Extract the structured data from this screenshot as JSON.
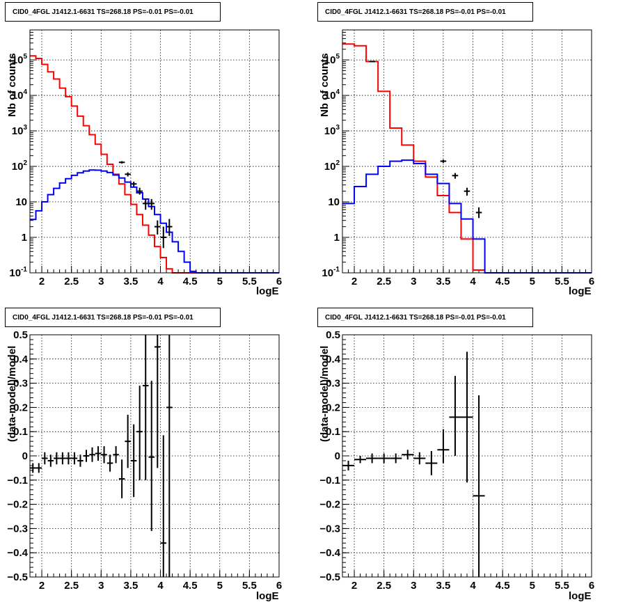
{
  "chart_data": [
    {
      "type": "line",
      "title": "CID0_4FGL J1412.1-6631 TS=268.18 PS=-0.01 PS=-0.01",
      "xlabel": "logE",
      "ylabel": "Nb of counts",
      "xlim": [
        1.8,
        6.0
      ],
      "ylim": [
        0.1,
        700000
      ],
      "yscale": "log",
      "grid": true,
      "xticks": [
        "2",
        "2.5",
        "3",
        "3.5",
        "4",
        "4.5",
        "5",
        "5.5",
        "6"
      ],
      "yticks": [
        "10^-1",
        "1",
        "10",
        "10^2",
        "10^3",
        "10^4",
        "10^5"
      ],
      "bin_edges": [
        1.8,
        1.9,
        2.0,
        2.1,
        2.2,
        2.3,
        2.4,
        2.5,
        2.6,
        2.7,
        2.8,
        2.9,
        3.0,
        3.1,
        3.2,
        3.3,
        3.4,
        3.5,
        3.6,
        3.7,
        3.8,
        3.9,
        4.0,
        4.1,
        4.2,
        4.3,
        4.4,
        4.5,
        4.6,
        4.7,
        4.8,
        4.9,
        5.0,
        5.1,
        5.2,
        5.3,
        5.4,
        5.5,
        5.6,
        5.7,
        5.8,
        5.9,
        6.0
      ],
      "series": [
        {
          "color": "#ff0000",
          "style": "step",
          "values": [
            130000,
            110000,
            75000,
            46000,
            29000,
            16000,
            9200,
            5000,
            2600,
            1400,
            780,
            420,
            220,
            115,
            60,
            32,
            16,
            8.5,
            4.4,
            2.2,
            1.15,
            0.55,
            0.27,
            0.13,
            0.1,
            0.1,
            0.1,
            0.1,
            0.1,
            0.1,
            0.1,
            0.1,
            0.1,
            0.1,
            0.1,
            0.1,
            0.1,
            0.1,
            0.1,
            0.1,
            0.1,
            0.1
          ]
        },
        {
          "color": "#0000ff",
          "style": "step",
          "values": [
            3.2,
            5.6,
            10,
            16,
            24,
            34,
            45,
            56,
            66,
            74,
            79,
            78,
            74,
            67,
            57,
            47,
            36,
            26,
            18,
            12,
            7.4,
            4.4,
            2.5,
            1.4,
            0.75,
            0.4,
            0.2,
            0.11,
            0.1,
            0.1,
            0.1,
            0.1,
            0.1,
            0.1,
            0.1,
            0.1,
            0.1,
            0.1,
            0.1,
            0.1,
            0.1,
            0.1
          ]
        }
      ],
      "points": {
        "color": "#000000",
        "x": [
          3.35,
          3.45,
          3.55,
          3.65,
          3.75,
          3.85,
          3.95,
          4.05,
          4.15
        ],
        "y": [
          130,
          60,
          32,
          20,
          9,
          9,
          2,
          1,
          2
        ],
        "ylo": [
          120,
          52,
          27,
          16,
          6,
          6,
          1.2,
          0.5,
          1.1
        ],
        "yhi": [
          140,
          68,
          37,
          25,
          12,
          12,
          3,
          2,
          3.3
        ]
      }
    },
    {
      "type": "line",
      "title": "CID0_4FGL J1412.1-6631 TS=268.18 PS=-0.01 PS=-0.01",
      "xlabel": "logE",
      "ylabel": "Nb of counts",
      "xlim": [
        1.8,
        6.0
      ],
      "ylim": [
        0.1,
        700000
      ],
      "yscale": "log",
      "grid": true,
      "xticks": [
        "2",
        "2.5",
        "3",
        "3.5",
        "4",
        "4.5",
        "5",
        "5.5",
        "6"
      ],
      "yticks": [
        "10^-1",
        "1",
        "10",
        "10^2",
        "10^3",
        "10^4",
        "10^5"
      ],
      "bin_edges": [
        1.8,
        2.0,
        2.2,
        2.4,
        2.6,
        2.8,
        3.0,
        3.2,
        3.4,
        3.6,
        3.8,
        4.0,
        4.2,
        4.4,
        4.6,
        4.8,
        5.0,
        5.2,
        5.4,
        5.6,
        5.8,
        6.0
      ],
      "series": [
        {
          "color": "#ff0000",
          "style": "step",
          "values": [
            280000,
            250000,
            90000,
            13000,
            1200,
            400,
            140,
            50,
            15,
            5,
            0.9,
            0.12,
            0.1,
            0.1,
            0.1,
            0.1,
            0.1,
            0.1,
            0.1,
            0.1,
            0.1
          ]
        },
        {
          "color": "#0000ff",
          "style": "step",
          "values": [
            9,
            27,
            60,
            100,
            140,
            150,
            120,
            60,
            33,
            9,
            3.3,
            0.9,
            0.1,
            0.1,
            0.1,
            0.1,
            0.1,
            0.1,
            0.1,
            0.1,
            0.1
          ]
        }
      ],
      "points": {
        "color": "#000000",
        "x": [
          2.3,
          3.5,
          3.7,
          3.9,
          4.1
        ],
        "y": [
          90000,
          140,
          55,
          20,
          5
        ],
        "ylo": [
          88000,
          125,
          45,
          15,
          3.5
        ],
        "yhi": [
          92000,
          155,
          65,
          25,
          7
        ]
      }
    },
    {
      "type": "scatter",
      "title": "CID0_4FGL J1412.1-6631 TS=268.18 PS=-0.01 PS=-0.01",
      "xlabel": "logE",
      "ylabel": "(data-model)/model",
      "xlim": [
        1.8,
        6.0
      ],
      "ylim": [
        -0.5,
        0.5
      ],
      "grid": true,
      "xticks": [
        "2",
        "2.5",
        "3",
        "3.5",
        "4",
        "4.5",
        "5",
        "5.5",
        "6"
      ],
      "yticks": [
        "-0.5",
        "-0.4",
        "-0.3",
        "-0.2",
        "-0.1",
        "0",
        "0.1",
        "0.2",
        "0.3",
        "0.4",
        "0.5"
      ],
      "points": {
        "color": "#000000",
        "xwidth": 0.05,
        "x": [
          1.85,
          1.95,
          2.05,
          2.15,
          2.25,
          2.35,
          2.45,
          2.55,
          2.65,
          2.75,
          2.85,
          2.95,
          3.05,
          3.15,
          3.25,
          3.35,
          3.45,
          3.55,
          3.65,
          3.75,
          3.85,
          3.95,
          4.05,
          4.15
        ],
        "y": [
          -0.05,
          -0.05,
          -0.01,
          -0.02,
          -0.01,
          -0.01,
          -0.01,
          -0.01,
          -0.02,
          0.0,
          0.005,
          0.01,
          0.005,
          -0.03,
          0.005,
          -0.095,
          0.06,
          -0.02,
          0.1,
          0.29,
          -0.005,
          0.45,
          -0.36,
          0.2
        ],
        "ylo": [
          -0.07,
          -0.07,
          -0.035,
          -0.045,
          -0.035,
          -0.035,
          -0.035,
          -0.035,
          -0.045,
          -0.025,
          -0.025,
          -0.02,
          -0.03,
          -0.065,
          -0.03,
          -0.175,
          -0.05,
          -0.17,
          -0.1,
          -0.1,
          -0.31,
          -0.05,
          -0.5,
          -0.5
        ],
        "yhi": [
          -0.03,
          -0.03,
          0.015,
          0.005,
          0.015,
          0.015,
          0.015,
          0.015,
          0.005,
          0.025,
          0.035,
          0.04,
          0.04,
          0.005,
          0.04,
          -0.015,
          0.17,
          0.13,
          0.29,
          0.5,
          0.31,
          0.5,
          0.085,
          0.5
        ]
      }
    },
    {
      "type": "scatter",
      "title": "CID0_4FGL J1412.1-6631 TS=268.18 PS=-0.01 PS=-0.01",
      "xlabel": "logE",
      "ylabel": "(data-model)/model",
      "xlim": [
        1.8,
        6.0
      ],
      "ylim": [
        -0.5,
        0.5
      ],
      "grid": true,
      "xticks": [
        "2",
        "2.5",
        "3",
        "3.5",
        "4",
        "4.5",
        "5",
        "5.5",
        "6"
      ],
      "yticks": [
        "-0.5",
        "-0.4",
        "-0.3",
        "-0.2",
        "-0.1",
        "0",
        "0.1",
        "0.2",
        "0.3",
        "0.4",
        "0.5"
      ],
      "points": {
        "color": "#000000",
        "xwidth": 0.1,
        "x": [
          1.9,
          2.1,
          2.3,
          2.5,
          2.7,
          2.9,
          3.1,
          3.3,
          3.5,
          3.7,
          3.9,
          4.1
        ],
        "y": [
          -0.04,
          -0.015,
          -0.01,
          -0.01,
          -0.01,
          0.005,
          -0.01,
          -0.03,
          0.025,
          0.16,
          0.16,
          -0.165
        ],
        "ylo": [
          -0.06,
          -0.03,
          -0.03,
          -0.03,
          -0.03,
          -0.015,
          -0.035,
          -0.08,
          -0.03,
          0.0,
          -0.11,
          -0.5
        ],
        "yhi": [
          -0.02,
          0.0,
          0.01,
          0.01,
          0.01,
          0.025,
          0.015,
          0.02,
          0.11,
          0.33,
          0.43,
          0.25
        ]
      }
    }
  ]
}
